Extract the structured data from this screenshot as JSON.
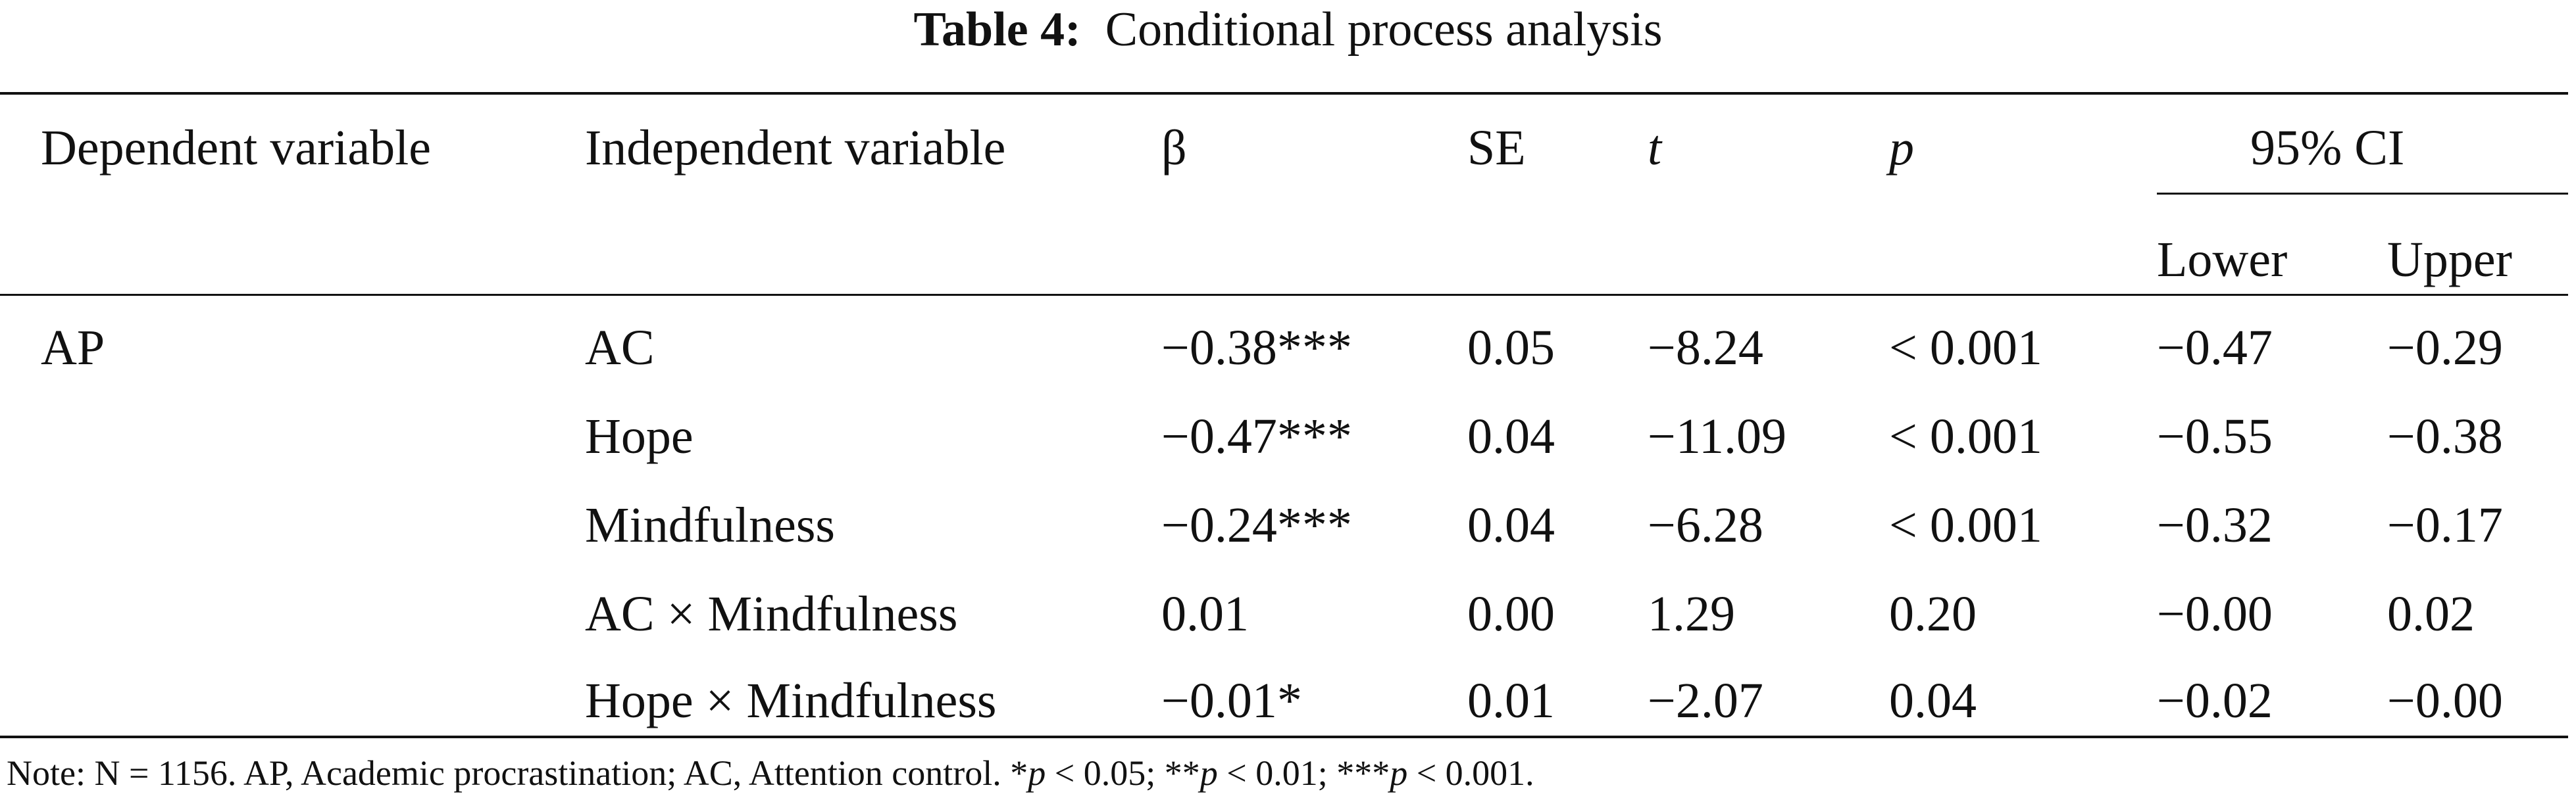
{
  "title": {
    "label": "Table 4:",
    "text": "Conditional process analysis"
  },
  "header": {
    "columns": [
      "Dependent variable",
      "Independent variable",
      "β",
      "SE",
      "t",
      "p"
    ],
    "ci": {
      "label": "95% CI",
      "sub": [
        "Lower",
        "Upper"
      ]
    }
  },
  "groups": [
    {
      "dependent": "AP",
      "rows": [
        [
          "AC",
          "−0.38***",
          "0.05",
          "−8.24",
          "< 0.001",
          "−0.47",
          "−0.29"
        ],
        [
          "Hope",
          "−0.47***",
          "0.04",
          "−11.09",
          "< 0.001",
          "−0.55",
          "−0.38"
        ],
        [
          "Mindfulness",
          "−0.24***",
          "0.04",
          "−6.28",
          "< 0.001",
          "−0.32",
          "−0.17"
        ],
        [
          "AC × Mindfulness",
          "0.01",
          "0.00",
          "1.29",
          "0.20",
          "−0.00",
          "0.02"
        ],
        [
          "Hope × Mindfulness",
          "−0.01*",
          "0.01",
          "−2.07",
          "0.04",
          "−0.02",
          "−0.00"
        ]
      ]
    }
  ],
  "note": [
    "Note: N = 1156. AP, Academic procrastination; AC, Attention control. *",
    "p",
    " < 0.05; **",
    "p",
    " < 0.01; ***",
    "p",
    " < 0.001."
  ]
}
